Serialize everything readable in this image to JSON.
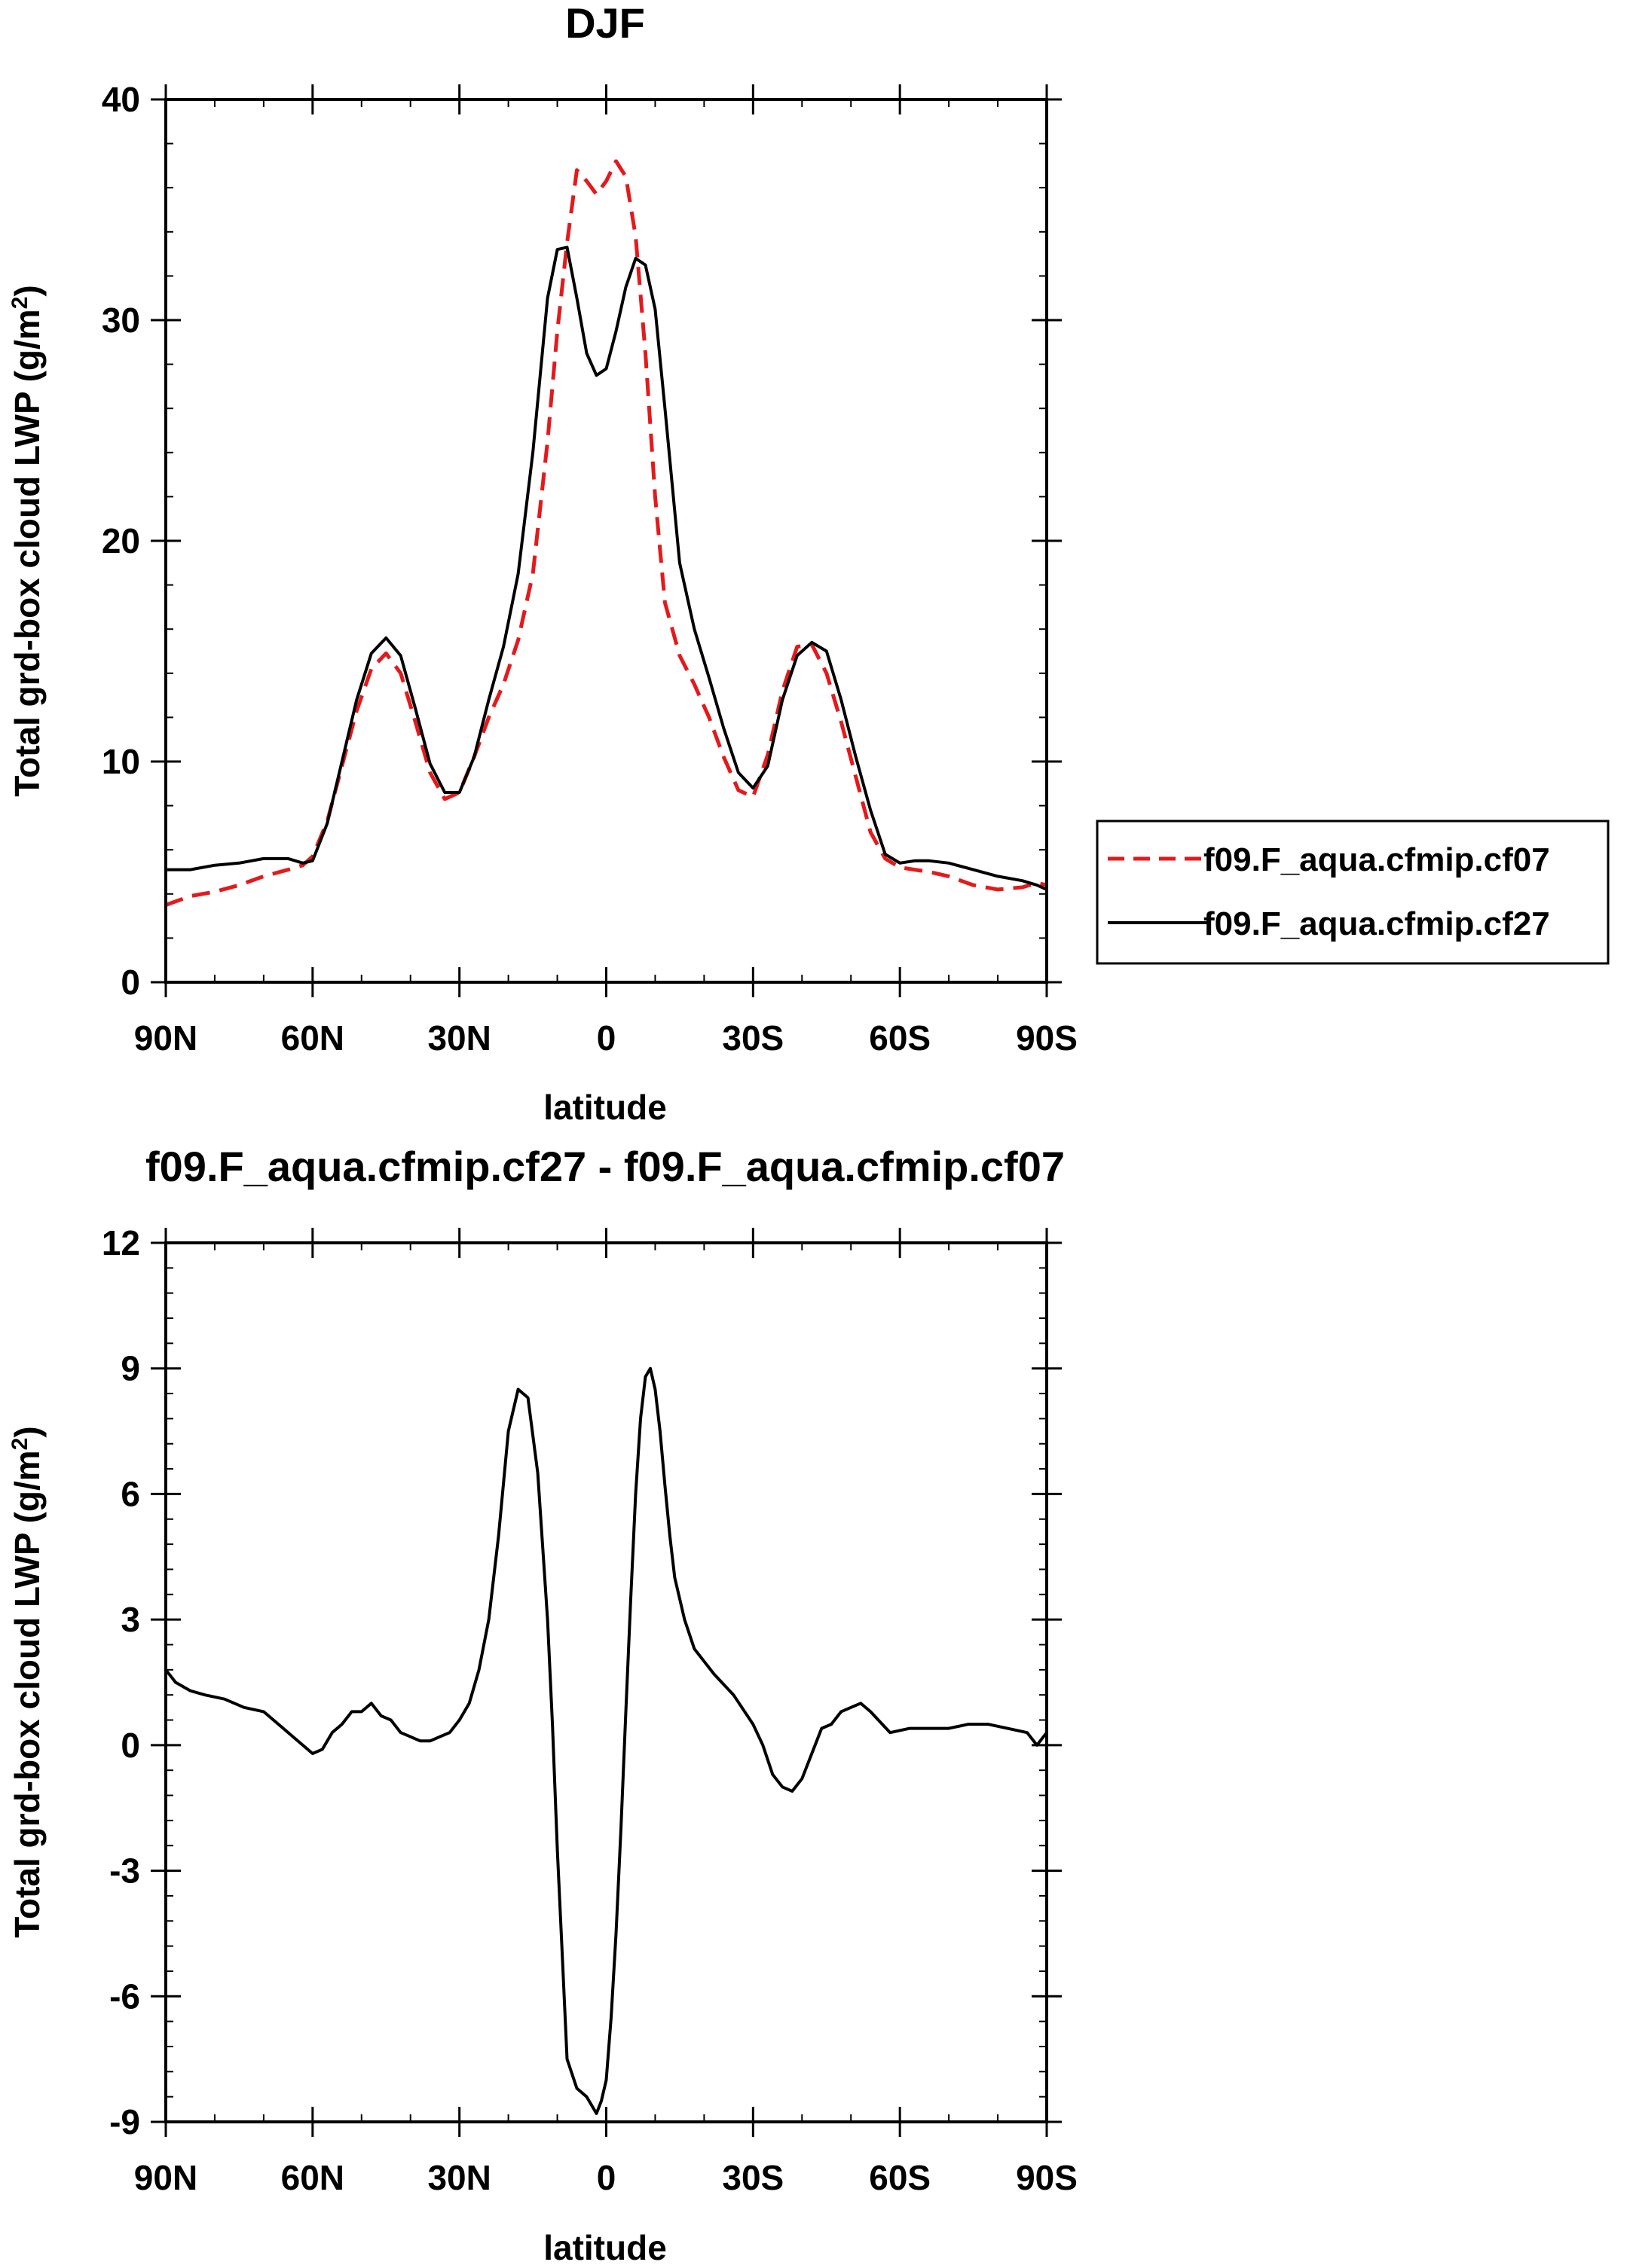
{
  "chart_data": [
    {
      "type": "line",
      "title": "DJF",
      "xlabel": "latitude",
      "ylabel": "Total grd-box cloud LWP (g/m",
      "ylabel_sup": "2",
      "ylabel_end": ")",
      "xlim": [
        90,
        -90
      ],
      "ylim": [
        0,
        40
      ],
      "xticks": [
        {
          "value": 90,
          "label": "90N"
        },
        {
          "value": 60,
          "label": "60N"
        },
        {
          "value": 30,
          "label": "30N"
        },
        {
          "value": 0,
          "label": "0"
        },
        {
          "value": -30,
          "label": "30S"
        },
        {
          "value": -60,
          "label": "60S"
        },
        {
          "value": -90,
          "label": "90S"
        }
      ],
      "yticks": [
        {
          "value": 0,
          "label": "0"
        },
        {
          "value": 10,
          "label": "10"
        },
        {
          "value": 20,
          "label": "20"
        },
        {
          "value": 30,
          "label": "30"
        },
        {
          "value": 40,
          "label": "40"
        }
      ],
      "legend_position": "right",
      "series": [
        {
          "name": "f09.F_aqua.cfmip.cf07",
          "color": "#e31a1c",
          "dash": "dashed",
          "x": [
            90,
            85,
            80,
            75,
            70,
            65,
            62,
            60,
            57,
            54,
            51,
            48,
            45,
            42,
            39,
            36,
            33,
            30,
            27,
            24,
            21,
            18,
            15,
            12,
            10,
            8,
            6,
            4,
            2,
            0,
            -2,
            -4,
            -6,
            -8,
            -10,
            -12,
            -15,
            -18,
            -21,
            -24,
            -27,
            -30,
            -33,
            -36,
            -39,
            -42,
            -45,
            -48,
            -51,
            -54,
            -57,
            -60,
            -63,
            -66,
            -70,
            -75,
            -80,
            -85,
            -88,
            -90
          ],
          "y": [
            3.5,
            3.9,
            4.1,
            4.4,
            4.8,
            5.1,
            5.3,
            5.7,
            7.3,
            9.8,
            12.3,
            14.2,
            14.9,
            14.0,
            11.8,
            9.5,
            8.3,
            8.6,
            10.2,
            12.0,
            13.5,
            15.5,
            18.5,
            24.5,
            29.5,
            33.5,
            36.8,
            36.3,
            35.7,
            36.3,
            37.2,
            36.5,
            33.8,
            28.5,
            22.0,
            17.2,
            14.8,
            13.5,
            12.0,
            10.2,
            8.7,
            8.4,
            10.3,
            13.2,
            15.2,
            15.3,
            14.0,
            11.8,
            9.3,
            6.8,
            5.6,
            5.2,
            5.1,
            5.0,
            4.8,
            4.4,
            4.2,
            4.3,
            4.5,
            4.4
          ]
        },
        {
          "name": "f09.F_aqua.cfmip.cf27",
          "color": "#000000",
          "dash": "solid",
          "x": [
            90,
            85,
            80,
            75,
            70,
            65,
            62,
            60,
            57,
            54,
            51,
            48,
            45,
            42,
            39,
            36,
            33,
            30,
            27,
            24,
            21,
            18,
            15,
            12,
            10,
            8,
            6,
            4,
            2,
            0,
            -2,
            -4,
            -6,
            -8,
            -10,
            -12,
            -15,
            -18,
            -21,
            -24,
            -27,
            -30,
            -33,
            -36,
            -39,
            -42,
            -45,
            -48,
            -51,
            -54,
            -57,
            -60,
            -63,
            -66,
            -70,
            -75,
            -80,
            -85,
            -88,
            -90
          ],
          "y": [
            5.1,
            5.1,
            5.3,
            5.4,
            5.6,
            5.6,
            5.4,
            5.5,
            7.2,
            10.0,
            12.8,
            14.9,
            15.6,
            14.8,
            12.4,
            9.9,
            8.6,
            8.6,
            10.2,
            12.8,
            15.2,
            18.5,
            24.0,
            31.0,
            33.2,
            33.3,
            31.0,
            28.5,
            27.5,
            27.8,
            29.5,
            31.5,
            32.8,
            32.5,
            30.5,
            26.0,
            19.0,
            16.0,
            13.8,
            11.5,
            9.5,
            8.8,
            9.8,
            12.8,
            14.8,
            15.4,
            15.0,
            12.8,
            10.2,
            7.8,
            5.8,
            5.4,
            5.5,
            5.5,
            5.4,
            5.1,
            4.8,
            4.6,
            4.4,
            4.2
          ]
        }
      ]
    },
    {
      "type": "line",
      "title": "f09.F_aqua.cfmip.cf27 - f09.F_aqua.cfmip.cf07",
      "xlabel": "latitude",
      "ylabel": "Total grd-box cloud LWP (g/m",
      "ylabel_sup": "2",
      "ylabel_end": ")",
      "xlim": [
        90,
        -90
      ],
      "ylim": [
        -9,
        12
      ],
      "xticks": [
        {
          "value": 90,
          "label": "90N"
        },
        {
          "value": 60,
          "label": "60N"
        },
        {
          "value": 30,
          "label": "30N"
        },
        {
          "value": 0,
          "label": "0"
        },
        {
          "value": -30,
          "label": "30S"
        },
        {
          "value": -60,
          "label": "60S"
        },
        {
          "value": -90,
          "label": "90S"
        }
      ],
      "yticks": [
        {
          "value": -9,
          "label": "-9"
        },
        {
          "value": -6,
          "label": "-6"
        },
        {
          "value": -3,
          "label": "-3"
        },
        {
          "value": 0,
          "label": "0"
        },
        {
          "value": 3,
          "label": "3"
        },
        {
          "value": 6,
          "label": "6"
        },
        {
          "value": 9,
          "label": "9"
        },
        {
          "value": 12,
          "label": "12"
        }
      ],
      "series": [
        {
          "color": "#000000",
          "dash": "solid",
          "x": [
            90,
            88,
            85,
            82,
            78,
            74,
            70,
            66,
            62,
            60,
            58,
            56,
            54,
            52,
            50,
            48,
            46,
            44,
            42,
            40,
            38,
            36,
            34,
            32,
            30,
            28,
            26,
            24,
            22,
            20,
            18,
            16,
            14,
            12,
            11,
            10,
            9,
            8,
            6,
            4,
            2,
            1,
            0,
            -1,
            -2,
            -3,
            -4,
            -5,
            -6,
            -7,
            -8,
            -9,
            -10,
            -11,
            -12,
            -13,
            -14,
            -16,
            -18,
            -20,
            -22,
            -26,
            -30,
            -32,
            -34,
            -36,
            -38,
            -40,
            -42,
            -44,
            -46,
            -48,
            -50,
            -52,
            -54,
            -58,
            -62,
            -66,
            -70,
            -74,
            -78,
            -82,
            -86,
            -88,
            -90
          ],
          "y": [
            1.8,
            1.5,
            1.3,
            1.2,
            1.1,
            0.9,
            0.8,
            0.4,
            0.0,
            -0.2,
            -0.1,
            0.3,
            0.5,
            0.8,
            0.8,
            1.0,
            0.7,
            0.6,
            0.3,
            0.2,
            0.1,
            0.1,
            0.2,
            0.3,
            0.6,
            1.0,
            1.8,
            3.0,
            5.0,
            7.5,
            8.5,
            8.3,
            6.5,
            3.0,
            0.5,
            -2.5,
            -5.0,
            -7.5,
            -8.2,
            -8.4,
            -8.8,
            -8.5,
            -8.0,
            -6.5,
            -4.5,
            -2.0,
            0.8,
            3.5,
            6.0,
            7.8,
            8.8,
            9.0,
            8.5,
            7.5,
            6.2,
            5.0,
            4.0,
            3.0,
            2.3,
            2.0,
            1.7,
            1.2,
            0.5,
            0.0,
            -0.7,
            -1.0,
            -1.1,
            -0.8,
            -0.2,
            0.4,
            0.5,
            0.8,
            0.9,
            1.0,
            0.8,
            0.3,
            0.4,
            0.4,
            0.4,
            0.5,
            0.5,
            0.4,
            0.3,
            0.0,
            0.3
          ]
        }
      ]
    }
  ]
}
